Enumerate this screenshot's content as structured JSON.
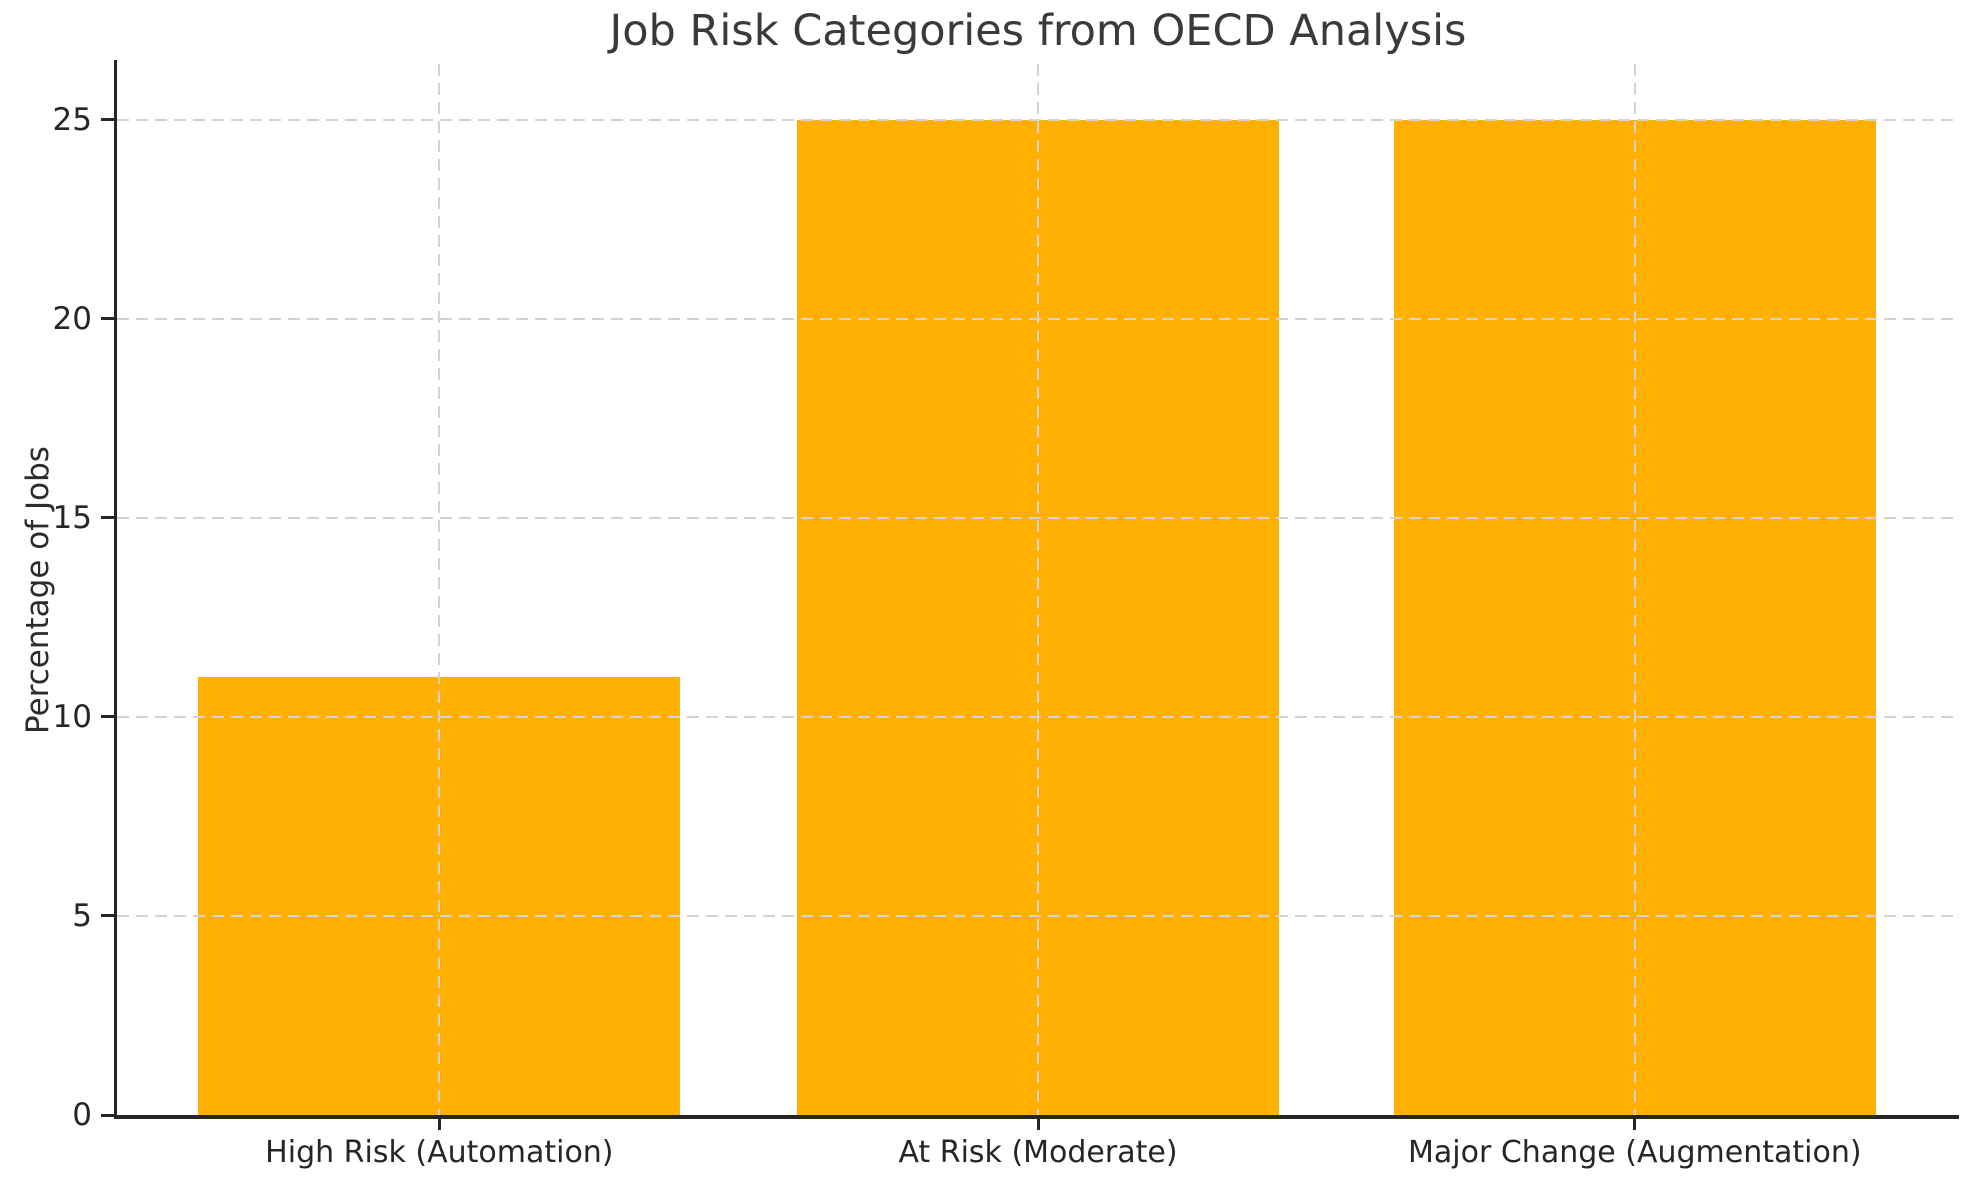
{
  "chart_data": {
    "type": "bar",
    "title": "Job Risk Categories from OECD Analysis",
    "categories": [
      "High Risk (Automation)",
      "At Risk (Moderate)",
      "Major Change (Augmentation)"
    ],
    "values": [
      11,
      25,
      25
    ],
    "xlabel": "",
    "ylabel": "Percentage of Jobs",
    "yticks": [
      0,
      5,
      10,
      15,
      20,
      25
    ],
    "ylim": [
      0,
      26.4
    ],
    "grid": true,
    "grid_axis": "both",
    "grid_style": "dashed",
    "legend_position": "none",
    "colors": {
      "bar": "#FFB000",
      "grid": "#d3d3d3",
      "axis": "#262626",
      "title_text": "#3a3a3a",
      "tick_text": "#262626",
      "background": "#ffffff"
    }
  }
}
